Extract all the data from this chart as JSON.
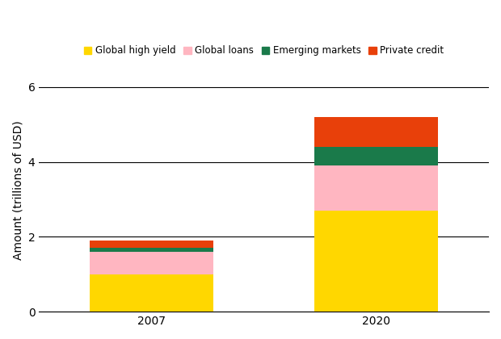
{
  "categories": [
    "2007",
    "2020"
  ],
  "series": [
    {
      "name": "Global high yield",
      "values": [
        1.0,
        2.7
      ],
      "color": "#FFD700"
    },
    {
      "name": "Global loans",
      "values": [
        0.6,
        1.2
      ],
      "color": "#FFB6C1"
    },
    {
      "name": "Emerging markets",
      "values": [
        0.1,
        0.5
      ],
      "color": "#1A7A4A"
    },
    {
      "name": "Private credit",
      "values": [
        0.2,
        0.8
      ],
      "color": "#E8400A"
    }
  ],
  "ylabel": "Amount (trillions of USD)",
  "ylim": [
    0,
    6.5
  ],
  "yticks": [
    0,
    2,
    4,
    6
  ],
  "bar_width": 0.55,
  "background_color": "#ffffff",
  "legend_fontsize": 8.5,
  "ylabel_fontsize": 10,
  "tick_fontsize": 10,
  "xlim": [
    -0.5,
    1.5
  ]
}
